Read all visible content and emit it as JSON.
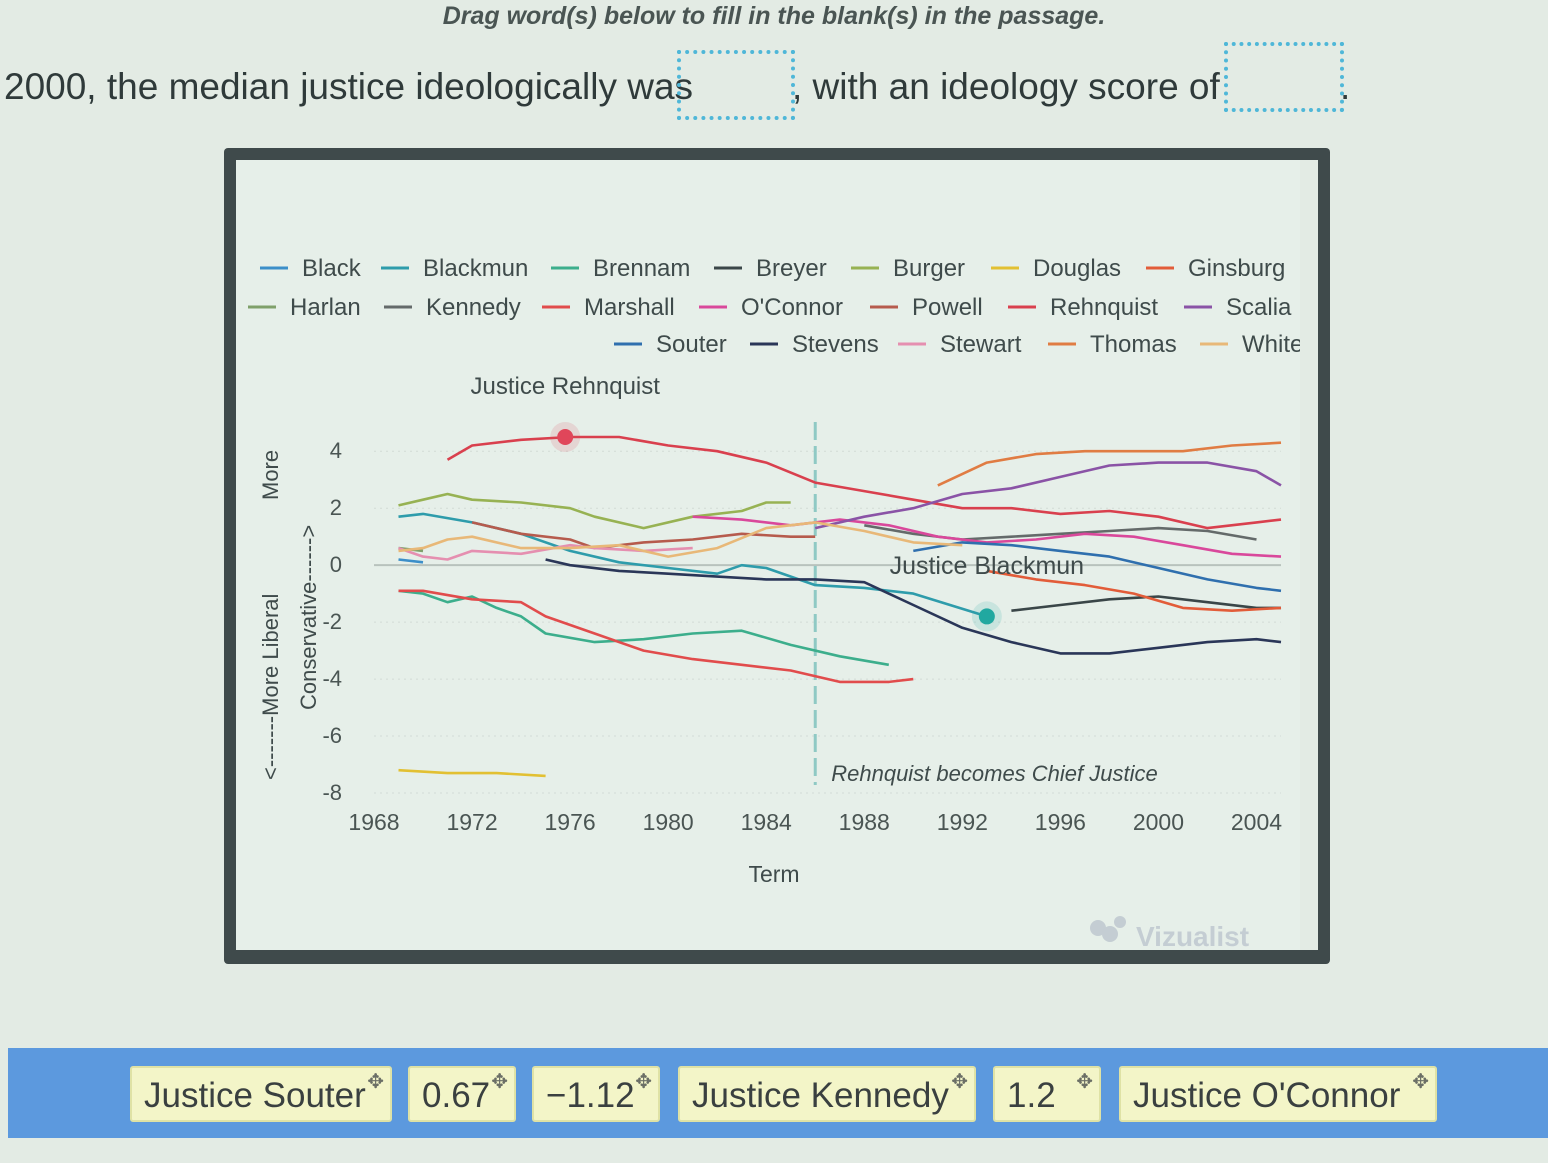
{
  "instruction": "Drag word(s) below to fill in the blank(s) in the passage.",
  "passage": {
    "part1": "2000, the median justice ideologically was",
    "part2": ", with an ideology score of",
    "part3": "."
  },
  "word_bank": [
    {
      "label": "Justice Souter",
      "icon": "move-icon"
    },
    {
      "label": "0.67",
      "icon": "move-icon"
    },
    {
      "label": "−1.12",
      "icon": "move-icon"
    },
    {
      "label": "Justice Kennedy",
      "icon": "move-icon"
    },
    {
      "label": "1.2",
      "icon": "move-icon"
    },
    {
      "label": "Justice O'Connor",
      "icon": "move-icon"
    }
  ],
  "watermark": "Vizualist",
  "chart_data": {
    "type": "line",
    "xlabel": "Term",
    "ylabel_parts": [
      "<-------More Liberal",
      "More",
      "Conservative------>"
    ],
    "xlim": [
      1968,
      2005
    ],
    "ylim": [
      -8,
      4.5
    ],
    "xticks": [
      1968,
      1972,
      1976,
      1980,
      1984,
      1988,
      1992,
      1996,
      2000,
      2004
    ],
    "yticks": [
      4,
      2,
      0,
      -2,
      -4,
      -6,
      -8
    ],
    "annotations": [
      {
        "text": "Justice Rehnquist",
        "x": 1975.8,
        "y": 4.6
      },
      {
        "text": "Justice Blackmun",
        "x": 1993,
        "y": -0.1
      },
      {
        "text": "Rehnquist becomes Chief Justice",
        "x": 1986,
        "y": -7.5
      }
    ],
    "vertical_line": {
      "x": 1986
    },
    "highlight_points": [
      {
        "series": "Rehnquist",
        "x": 1975.8,
        "y": 4.5,
        "color": "#e0465a"
      },
      {
        "series": "Blackmun",
        "x": 1993,
        "y": -1.8,
        "color": "#21a8a0"
      }
    ],
    "series": [
      {
        "name": "Black",
        "color": "#3c8fc9",
        "x": [
          1969,
          1970
        ],
        "y": [
          0.2,
          0.1
        ]
      },
      {
        "name": "Blackmun",
        "color": "#2e9cab",
        "x": [
          1969,
          1970,
          1972,
          1974,
          1976,
          1978,
          1980,
          1982,
          1983,
          1984,
          1986,
          1988,
          1990,
          1993
        ],
        "y": [
          1.7,
          1.8,
          1.5,
          1.1,
          0.5,
          0.1,
          -0.1,
          -0.3,
          0.0,
          -0.1,
          -0.7,
          -0.8,
          -1.0,
          -1.8
        ]
      },
      {
        "name": "Brennam",
        "color": "#3cae8c",
        "x": [
          1969,
          1970,
          1971,
          1972,
          1973,
          1974,
          1975,
          1977,
          1979,
          1981,
          1983,
          1985,
          1987,
          1989
        ],
        "y": [
          -0.9,
          -1.0,
          -1.3,
          -1.1,
          -1.5,
          -1.8,
          -2.4,
          -2.7,
          -2.6,
          -2.4,
          -2.3,
          -2.8,
          -3.2,
          -3.5
        ]
      },
      {
        "name": "Breyer",
        "color": "#3a4648",
        "x": [
          1994,
          1996,
          1998,
          2000,
          2002,
          2004,
          2005
        ],
        "y": [
          -1.6,
          -1.4,
          -1.2,
          -1.1,
          -1.3,
          -1.5,
          -1.5
        ]
      },
      {
        "name": "Burger",
        "color": "#97b253",
        "x": [
          1969,
          1970,
          1971,
          1972,
          1974,
          1976,
          1977,
          1979,
          1981,
          1983,
          1984,
          1985
        ],
        "y": [
          2.1,
          2.3,
          2.5,
          2.3,
          2.2,
          2.0,
          1.7,
          1.3,
          1.7,
          1.9,
          2.2,
          2.2
        ]
      },
      {
        "name": "Douglas",
        "color": "#e2c032",
        "x": [
          1969,
          1971,
          1973,
          1975
        ],
        "y": [
          -7.2,
          -7.3,
          -7.3,
          -7.4
        ]
      },
      {
        "name": "Ginsburg",
        "color": "#e25c39",
        "x": [
          1993,
          1995,
          1997,
          1999,
          2001,
          2003,
          2005
        ],
        "y": [
          -0.2,
          -0.5,
          -0.7,
          -1.0,
          -1.5,
          -1.6,
          -1.5
        ]
      },
      {
        "name": "Harlan",
        "color": "#7fa06a",
        "x": [
          1969,
          1970
        ],
        "y": [
          0.6,
          0.5
        ]
      },
      {
        "name": "Kennedy",
        "color": "#646a6a",
        "x": [
          1988,
          1990,
          1992,
          1994,
          1996,
          1998,
          2000,
          2002,
          2004
        ],
        "y": [
          1.4,
          1.1,
          0.9,
          1.0,
          1.1,
          1.2,
          1.3,
          1.2,
          0.9
        ]
      },
      {
        "name": "Marshall",
        "color": "#e14c4c",
        "x": [
          1969,
          1970,
          1972,
          1974,
          1975,
          1977,
          1979,
          1981,
          1983,
          1985,
          1987,
          1989,
          1990
        ],
        "y": [
          -0.9,
          -0.9,
          -1.2,
          -1.3,
          -1.8,
          -2.4,
          -3.0,
          -3.3,
          -3.5,
          -3.7,
          -4.1,
          -4.1,
          -4.0
        ]
      },
      {
        "name": "O'Connor",
        "color": "#d9489b",
        "x": [
          1981,
          1983,
          1985,
          1987,
          1989,
          1991,
          1993,
          1995,
          1997,
          1999,
          2001,
          2003,
          2005
        ],
        "y": [
          1.7,
          1.6,
          1.4,
          1.6,
          1.4,
          1.0,
          0.8,
          0.9,
          1.1,
          1.0,
          0.7,
          0.4,
          0.3
        ]
      },
      {
        "name": "Powell",
        "color": "#b65b4d",
        "x": [
          1972,
          1974,
          1976,
          1977,
          1979,
          1981,
          1983,
          1985,
          1986
        ],
        "y": [
          1.5,
          1.1,
          0.9,
          0.6,
          0.8,
          0.9,
          1.1,
          1.0,
          1.0
        ]
      },
      {
        "name": "Rehnquist",
        "color": "#d9404e",
        "x": [
          1971,
          1972,
          1974,
          1976,
          1978,
          1980,
          1982,
          1984,
          1986,
          1988,
          1990,
          1992,
          1994,
          1996,
          1998,
          2000,
          2002,
          2004,
          2005
        ],
        "y": [
          3.7,
          4.2,
          4.4,
          4.5,
          4.5,
          4.2,
          4.0,
          3.6,
          2.9,
          2.6,
          2.3,
          2.0,
          2.0,
          1.8,
          1.9,
          1.7,
          1.3,
          1.5,
          1.6
        ]
      },
      {
        "name": "Scalia",
        "color": "#8a53a6",
        "x": [
          1986,
          1988,
          1990,
          1992,
          1994,
          1996,
          1998,
          2000,
          2002,
          2004,
          2005
        ],
        "y": [
          1.3,
          1.7,
          2.0,
          2.5,
          2.7,
          3.1,
          3.5,
          3.6,
          3.6,
          3.3,
          2.8
        ]
      },
      {
        "name": "Souter",
        "color": "#2f6fae",
        "x": [
          1990,
          1992,
          1994,
          1996,
          1998,
          2000,
          2002,
          2004,
          2005
        ],
        "y": [
          0.5,
          0.8,
          0.7,
          0.5,
          0.3,
          -0.1,
          -0.5,
          -0.8,
          -0.9
        ]
      },
      {
        "name": "Stevens",
        "color": "#2a3658",
        "x": [
          1975,
          1976,
          1978,
          1980,
          1982,
          1984,
          1986,
          1988,
          1990,
          1992,
          1994,
          1996,
          1998,
          2000,
          2002,
          2004,
          2005
        ],
        "y": [
          0.2,
          0.0,
          -0.2,
          -0.3,
          -0.4,
          -0.5,
          -0.5,
          -0.6,
          -1.4,
          -2.2,
          -2.7,
          -3.1,
          -3.1,
          -2.9,
          -2.7,
          -2.6,
          -2.7
        ]
      },
      {
        "name": "Stewart",
        "color": "#e58fb0",
        "x": [
          1969,
          1970,
          1971,
          1972,
          1974,
          1976,
          1977,
          1979,
          1981
        ],
        "y": [
          0.6,
          0.3,
          0.2,
          0.5,
          0.4,
          0.7,
          0.6,
          0.5,
          0.6
        ]
      },
      {
        "name": "Thomas",
        "color": "#e07c43",
        "x": [
          1991,
          1993,
          1995,
          1997,
          1999,
          2001,
          2003,
          2005
        ],
        "y": [
          2.8,
          3.6,
          3.9,
          4.0,
          4.0,
          4.0,
          4.2,
          4.3
        ]
      },
      {
        "name": "White",
        "color": "#e8b878",
        "x": [
          1969,
          1970,
          1971,
          1972,
          1974,
          1976,
          1978,
          1980,
          1982,
          1984,
          1986,
          1988,
          1990,
          1992
        ],
        "y": [
          0.5,
          0.6,
          0.9,
          1.0,
          0.6,
          0.6,
          0.7,
          0.3,
          0.6,
          1.3,
          1.5,
          1.2,
          0.8,
          0.7
        ]
      }
    ]
  }
}
